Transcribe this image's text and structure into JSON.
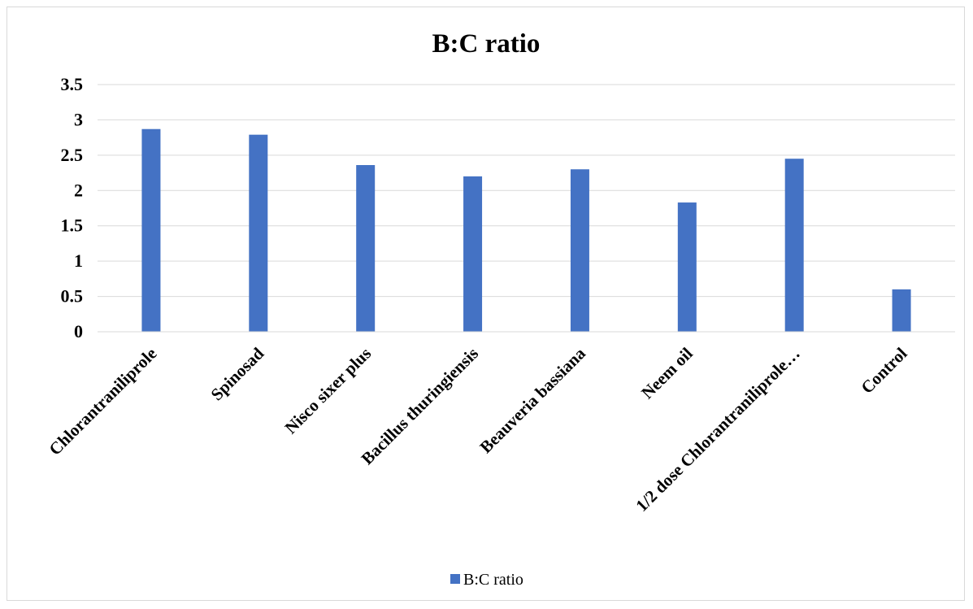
{
  "chart_data": {
    "type": "bar",
    "title": "B:C ratio",
    "xlabel": "",
    "ylabel": "",
    "categories": [
      "Chlorantraniliprole",
      "Spinosad",
      "Nisco sixer plus",
      "Bacillus thuringiensis",
      "Beauveria bassiana",
      "Neem oil",
      "1/2 dose Chlorantraniliprole…",
      "Control"
    ],
    "series": [
      {
        "name": "B:C ratio",
        "values": [
          2.87,
          2.79,
          2.36,
          2.2,
          2.3,
          1.83,
          2.45,
          0.6
        ],
        "color": "#4472c4"
      }
    ],
    "ylim": [
      0,
      3.5
    ],
    "yticks": [
      "0",
      "0.5",
      "1",
      "1.5",
      "2",
      "2.5",
      "3",
      "3.5"
    ],
    "grid": true,
    "legend_position": "bottom"
  }
}
